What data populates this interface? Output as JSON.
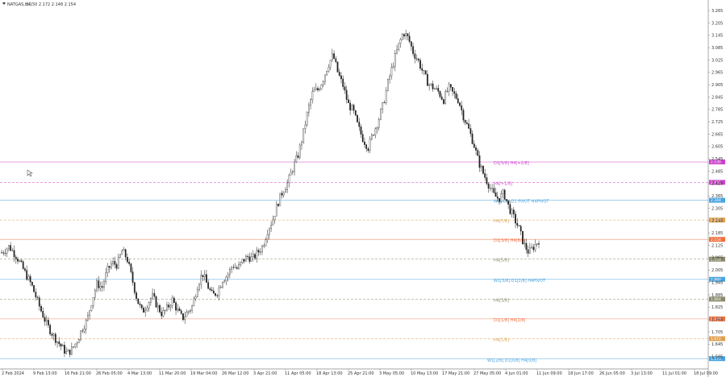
{
  "symbol": {
    "name": "NATGAS,H4",
    "quote": "2.150 2.172 2.148 2.154",
    "menu_icon": "triangle-down-icon"
  },
  "colors": {
    "candle": "#222222",
    "axis_line": "#888888",
    "background": "#ffffff"
  },
  "chart_data": {
    "type": "candlestick",
    "title": "",
    "xlabel": "",
    "ylabel": "",
    "ylim": [
      1.525,
      3.285
    ],
    "grid": false,
    "y_ticks": [
      "3.265",
      "3.205",
      "3.145",
      "3.085",
      "3.025",
      "2.965",
      "2.905",
      "2.845",
      "2.785",
      "2.725",
      "2.665",
      "2.605",
      "2.545",
      "2.485",
      "2.425",
      "2.365",
      "2.305",
      "2.245",
      "2.185",
      "2.125",
      "2.065",
      "2.005",
      "1.945",
      "1.885",
      "1.825",
      "1.765",
      "1.705",
      "1.645",
      "1.585"
    ],
    "x_ticks": [
      "2 Feb 2024",
      "9 Feb 13:00",
      "16 Feb 21:00",
      "26 Feb 05:00",
      "4 Mar 13:00",
      "11 Mar 20:00",
      "19 Mar 04:00",
      "26 Mar 12:00",
      "3 Apr 21:00",
      "11 Apr 05:00",
      "18 Apr 13:00",
      "25 Apr 21:00",
      "3 May 05:00",
      "10 May 13:00",
      "17 May 21:00",
      "27 May 05:00",
      "4 Jun 01:00",
      "11 Jun 09:00",
      "18 Jun 17:00",
      "26 Jun 05:00",
      "3 Jul 13:00",
      "11 Jul 01:00",
      "18 Jul 09:00"
    ],
    "price_path": [
      [
        0,
        2.09
      ],
      [
        3,
        2.12
      ],
      [
        6,
        2.07
      ],
      [
        9,
        2.0
      ],
      [
        12,
        1.93
      ],
      [
        15,
        1.83
      ],
      [
        18,
        1.74
      ],
      [
        21,
        1.68
      ],
      [
        24,
        1.63
      ],
      [
        26,
        1.6
      ],
      [
        28,
        1.62
      ],
      [
        30,
        1.66
      ],
      [
        32,
        1.72
      ],
      [
        34,
        1.76
      ],
      [
        36,
        1.86
      ],
      [
        38,
        1.94
      ],
      [
        40,
        1.92
      ],
      [
        42,
        2.0
      ],
      [
        44,
        2.04
      ],
      [
        46,
        2.03
      ],
      [
        48,
        2.1
      ],
      [
        50,
        2.06
      ],
      [
        52,
        1.96
      ],
      [
        54,
        1.86
      ],
      [
        56,
        1.8
      ],
      [
        58,
        1.84
      ],
      [
        60,
        1.88
      ],
      [
        62,
        1.83
      ],
      [
        64,
        1.79
      ],
      [
        66,
        1.82
      ],
      [
        68,
        1.86
      ],
      [
        70,
        1.81
      ],
      [
        72,
        1.77
      ],
      [
        74,
        1.8
      ],
      [
        76,
        1.83
      ],
      [
        78,
        1.93
      ],
      [
        80,
        1.99
      ],
      [
        82,
        1.93
      ],
      [
        84,
        1.88
      ],
      [
        86,
        1.9
      ],
      [
        88,
        1.96
      ],
      [
        90,
        1.98
      ],
      [
        92,
        2.03
      ],
      [
        94,
        2.01
      ],
      [
        96,
        2.05
      ],
      [
        98,
        2.07
      ],
      [
        100,
        2.06
      ],
      [
        102,
        2.09
      ],
      [
        104,
        2.12
      ],
      [
        106,
        2.2
      ],
      [
        108,
        2.25
      ],
      [
        110,
        2.33
      ],
      [
        112,
        2.39
      ],
      [
        114,
        2.43
      ],
      [
        116,
        2.5
      ],
      [
        118,
        2.56
      ],
      [
        120,
        2.66
      ],
      [
        122,
        2.78
      ],
      [
        124,
        2.87
      ],
      [
        126,
        2.88
      ],
      [
        128,
        2.93
      ],
      [
        130,
        3.0
      ],
      [
        132,
        3.05
      ],
      [
        134,
        2.96
      ],
      [
        136,
        2.9
      ],
      [
        138,
        2.81
      ],
      [
        140,
        2.78
      ],
      [
        142,
        2.7
      ],
      [
        144,
        2.64
      ],
      [
        146,
        2.6
      ],
      [
        148,
        2.67
      ],
      [
        150,
        2.73
      ],
      [
        152,
        2.81
      ],
      [
        154,
        2.92
      ],
      [
        156,
        3.01
      ],
      [
        158,
        3.09
      ],
      [
        160,
        3.16
      ],
      [
        162,
        3.13
      ],
      [
        164,
        3.06
      ],
      [
        166,
        3.02
      ],
      [
        168,
        2.96
      ],
      [
        170,
        2.91
      ],
      [
        172,
        2.89
      ],
      [
        174,
        2.87
      ],
      [
        176,
        2.83
      ],
      [
        178,
        2.89
      ],
      [
        180,
        2.86
      ],
      [
        182,
        2.83
      ],
      [
        184,
        2.75
      ],
      [
        186,
        2.69
      ],
      [
        188,
        2.62
      ],
      [
        190,
        2.53
      ],
      [
        192,
        2.47
      ],
      [
        194,
        2.42
      ],
      [
        196,
        2.37
      ],
      [
        198,
        2.35
      ],
      [
        200,
        2.38
      ],
      [
        202,
        2.31
      ],
      [
        204,
        2.26
      ],
      [
        206,
        2.21
      ],
      [
        208,
        2.13
      ],
      [
        210,
        2.09
      ],
      [
        212,
        2.12
      ],
      [
        214,
        2.15
      ]
    ],
    "levels": [
      {
        "label": "D1[5/8] H4[+2/8]",
        "price": 2.53,
        "badge": "2.530",
        "color": "#cc44cc",
        "style": "solid"
      },
      {
        "label": "H4[+1/8]",
        "price": 2.431,
        "badge": "2.431",
        "color": "#cc44cc",
        "style": "dashed"
      },
      {
        "label": "W1[4/8] D1 PIVOT H4PIVOT",
        "price": 2.344,
        "badge": "2.344",
        "color": "#4aa3df",
        "style": "solid"
      },
      {
        "label": "H4[7/8]",
        "price": 2.248,
        "badge": "2.248",
        "color": "#e0a050",
        "style": "dashed"
      },
      {
        "label": "D1[3/8] H4[6/8]",
        "price": 2.154,
        "badge": "2.154",
        "color": "#f07040",
        "style": "solid"
      },
      {
        "label": "H4[5/8]",
        "price": 2.058,
        "badge": "2.058",
        "color": "#8a8a6a",
        "style": "dashed"
      },
      {
        "label": "W1[3/8] D1[2/8] H4PIVOT",
        "price": 1.96,
        "badge": "1.960",
        "color": "#4aa3df",
        "style": "solid"
      },
      {
        "label": "H4[3/8]",
        "price": 1.864,
        "badge": "1.864",
        "color": "#8a8a6a",
        "style": "dashed"
      },
      {
        "label": "D1[1/8] H4[2/8]",
        "price": 1.768,
        "badge": "1.768",
        "color": "#f07040",
        "style": "solid"
      },
      {
        "label": "H4[1/8]",
        "price": 1.672,
        "badge": "1.672",
        "color": "#e0a050",
        "style": "dashed"
      },
      {
        "label": "",
        "price": 1.575,
        "badge": "1.575",
        "color": "#4aa3df",
        "style": "solid"
      }
    ],
    "badge_bottom_label": "W1[2/8] D1[0/8] H4[0/8]"
  }
}
